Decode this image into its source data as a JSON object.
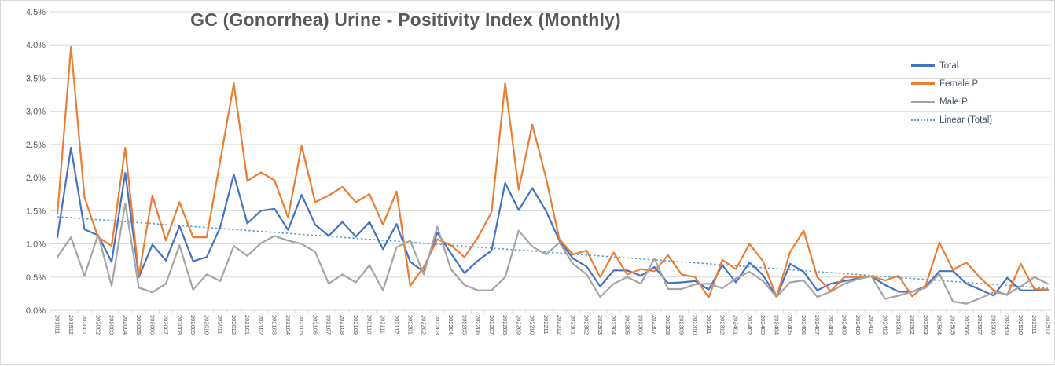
{
  "title": "GC (Gonorrhea) Urine - Positivity Index (Monthly)",
  "legend": {
    "items": [
      {
        "label": "Total",
        "color": "#4472C4",
        "line_style": "solid"
      },
      {
        "label": "Female P",
        "color": "#ED7D31",
        "line_style": "solid"
      },
      {
        "label": "Male P",
        "color": "#A5A5A5",
        "line_style": "solid"
      },
      {
        "label": "Linear (Total)",
        "color": "#5B9BD5",
        "line_style": "dotted"
      }
    ]
  },
  "y_axis": {
    "tick_labels": [
      "0.0%",
      "0.5%",
      "1.0%",
      "1.5%",
      "2.0%",
      "2.5%",
      "3.0%",
      "3.5%",
      "4.0%",
      "4.5%"
    ]
  },
  "colors": {
    "gridline": "#D9D9D9",
    "axis_text": "#595959",
    "title_text": "#595959",
    "legend_text": "#44546A",
    "background": "#FFFFFF",
    "border": "#D9D9D9"
  },
  "chart_data": {
    "type": "line",
    "title": "GC (Gonorrhea) Urine - Positivity Index (Monthly)",
    "xlabel": "",
    "ylabel": "",
    "unit": "percent",
    "ylim": [
      0,
      4.5
    ],
    "ytick_step": 0.5,
    "grid": true,
    "legend_position": "right-top",
    "x_label_rotation": "vertical-top-to-bottom",
    "categories": [
      "201911",
      "201912",
      "202001",
      "202002",
      "202003",
      "202004",
      "202005",
      "202006",
      "202007",
      "202008",
      "202009",
      "202010",
      "202011",
      "202012",
      "202101",
      "202102",
      "202103",
      "202104",
      "202105",
      "202106",
      "202107",
      "202108",
      "202109",
      "202110",
      "202111",
      "202112",
      "202201",
      "202202",
      "202203",
      "202204",
      "202205",
      "202206",
      "202207",
      "202208",
      "202209",
      "202210",
      "202211",
      "202212",
      "202301",
      "202302",
      "202303",
      "202304",
      "202305",
      "202306",
      "202307",
      "202308",
      "202309",
      "202310",
      "202311",
      "202312",
      "202401",
      "202402",
      "202403",
      "202404",
      "202405",
      "202406",
      "202407",
      "202408",
      "202409",
      "202410",
      "202411",
      "202412",
      "202501",
      "202502",
      "202503",
      "202504",
      "202505",
      "202506",
      "202507",
      "202508",
      "202509",
      "202510",
      "202511",
      "202512"
    ],
    "series": [
      {
        "name": "Total",
        "color": "#4472C4",
        "values": [
          1.1,
          2.45,
          1.22,
          1.13,
          0.73,
          2.07,
          0.5,
          0.99,
          0.75,
          1.27,
          0.74,
          0.8,
          1.25,
          2.05,
          1.31,
          1.5,
          1.53,
          1.21,
          1.74,
          1.29,
          1.12,
          1.33,
          1.11,
          1.33,
          0.92,
          1.3,
          0.73,
          0.58,
          1.17,
          0.86,
          0.56,
          0.75,
          0.9,
          1.92,
          1.51,
          1.84,
          1.5,
          1.05,
          0.78,
          0.66,
          0.36,
          0.6,
          0.6,
          0.52,
          0.65,
          0.41,
          0.42,
          0.44,
          0.31,
          0.68,
          0.42,
          0.72,
          0.53,
          0.2,
          0.7,
          0.58,
          0.3,
          0.4,
          0.44,
          0.48,
          0.51,
          0.38,
          0.28,
          0.28,
          0.36,
          0.59,
          0.59,
          0.4,
          0.31,
          0.22,
          0.49,
          0.3,
          0.3,
          0.3
        ]
      },
      {
        "name": "Female P",
        "color": "#ED7D31",
        "values": [
          1.45,
          3.97,
          1.7,
          1.1,
          0.97,
          2.45,
          0.52,
          1.73,
          1.05,
          1.63,
          1.1,
          1.1,
          2.25,
          3.42,
          1.95,
          2.08,
          1.96,
          1.4,
          2.48,
          1.63,
          1.73,
          1.86,
          1.63,
          1.75,
          1.29,
          1.79,
          0.37,
          0.65,
          1.07,
          0.98,
          0.8,
          1.1,
          1.48,
          3.42,
          1.82,
          2.8,
          2.0,
          1.07,
          0.84,
          0.9,
          0.5,
          0.87,
          0.54,
          0.62,
          0.59,
          0.83,
          0.54,
          0.5,
          0.19,
          0.76,
          0.62,
          1.0,
          0.74,
          0.2,
          0.88,
          1.2,
          0.5,
          0.29,
          0.5,
          0.5,
          0.51,
          0.45,
          0.52,
          0.21,
          0.38,
          1.02,
          0.61,
          0.72,
          0.49,
          0.3,
          0.23,
          0.7,
          0.32,
          0.31
        ]
      },
      {
        "name": "Male P",
        "color": "#A5A5A5",
        "values": [
          0.8,
          1.1,
          0.52,
          1.14,
          0.37,
          1.61,
          0.34,
          0.27,
          0.4,
          0.98,
          0.31,
          0.54,
          0.44,
          0.97,
          0.82,
          1.01,
          1.12,
          1.05,
          1.0,
          0.88,
          0.4,
          0.54,
          0.42,
          0.68,
          0.3,
          0.95,
          1.05,
          0.54,
          1.26,
          0.62,
          0.38,
          0.3,
          0.3,
          0.5,
          1.2,
          0.96,
          0.84,
          1.02,
          0.7,
          0.54,
          0.2,
          0.4,
          0.5,
          0.4,
          0.78,
          0.32,
          0.32,
          0.39,
          0.4,
          0.33,
          0.48,
          0.58,
          0.44,
          0.2,
          0.42,
          0.45,
          0.2,
          0.28,
          0.4,
          0.47,
          0.51,
          0.17,
          0.22,
          0.28,
          0.34,
          0.55,
          0.13,
          0.1,
          0.18,
          0.27,
          0.24,
          0.36,
          0.5,
          0.4
        ]
      }
    ],
    "trendline": {
      "name": "Linear (Total)",
      "for_series": "Total",
      "color": "#5B9BD5",
      "style": "dotted",
      "start_value": 1.41,
      "end_value": 0.33
    }
  }
}
